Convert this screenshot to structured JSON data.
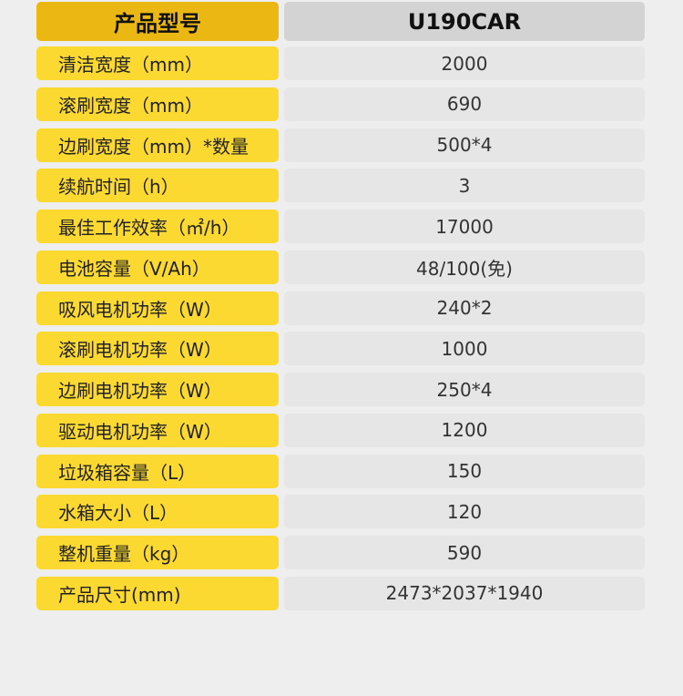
{
  "header": {
    "label": "产品型号",
    "model": "U190CAR"
  },
  "colors": {
    "header_yellow": "#ebb713",
    "row_yellow": "#fbd930",
    "header_gray": "#d3d3d3",
    "row_gray": "#e6e6e6",
    "background": "#eeeeee"
  },
  "rows": [
    {
      "label": "清洁宽度（mm）",
      "value": "2000"
    },
    {
      "label": "滚刷宽度（mm）",
      "value": "690"
    },
    {
      "label": "边刷宽度（mm）*数量",
      "value": "500*4"
    },
    {
      "label": "续航时间（h）",
      "value": "3"
    },
    {
      "label": "最佳工作效率（㎡/h）",
      "value": "17000"
    },
    {
      "label": "电池容量（V/Ah）",
      "value": "48/100(免)"
    },
    {
      "label": "吸风电机功率（W）",
      "value": "240*2"
    },
    {
      "label": "滚刷电机功率（W）",
      "value": "1000"
    },
    {
      "label": "边刷电机功率（W）",
      "value": "250*4"
    },
    {
      "label": "驱动电机功率（W）",
      "value": "1200"
    },
    {
      "label": "垃圾箱容量（L）",
      "value": "150"
    },
    {
      "label": "水箱大小（L）",
      "value": "120"
    },
    {
      "label": "整机重量（kg）",
      "value": "590"
    },
    {
      "label": "产品尺寸(mm)",
      "value": "2473*2037*1940"
    }
  ]
}
